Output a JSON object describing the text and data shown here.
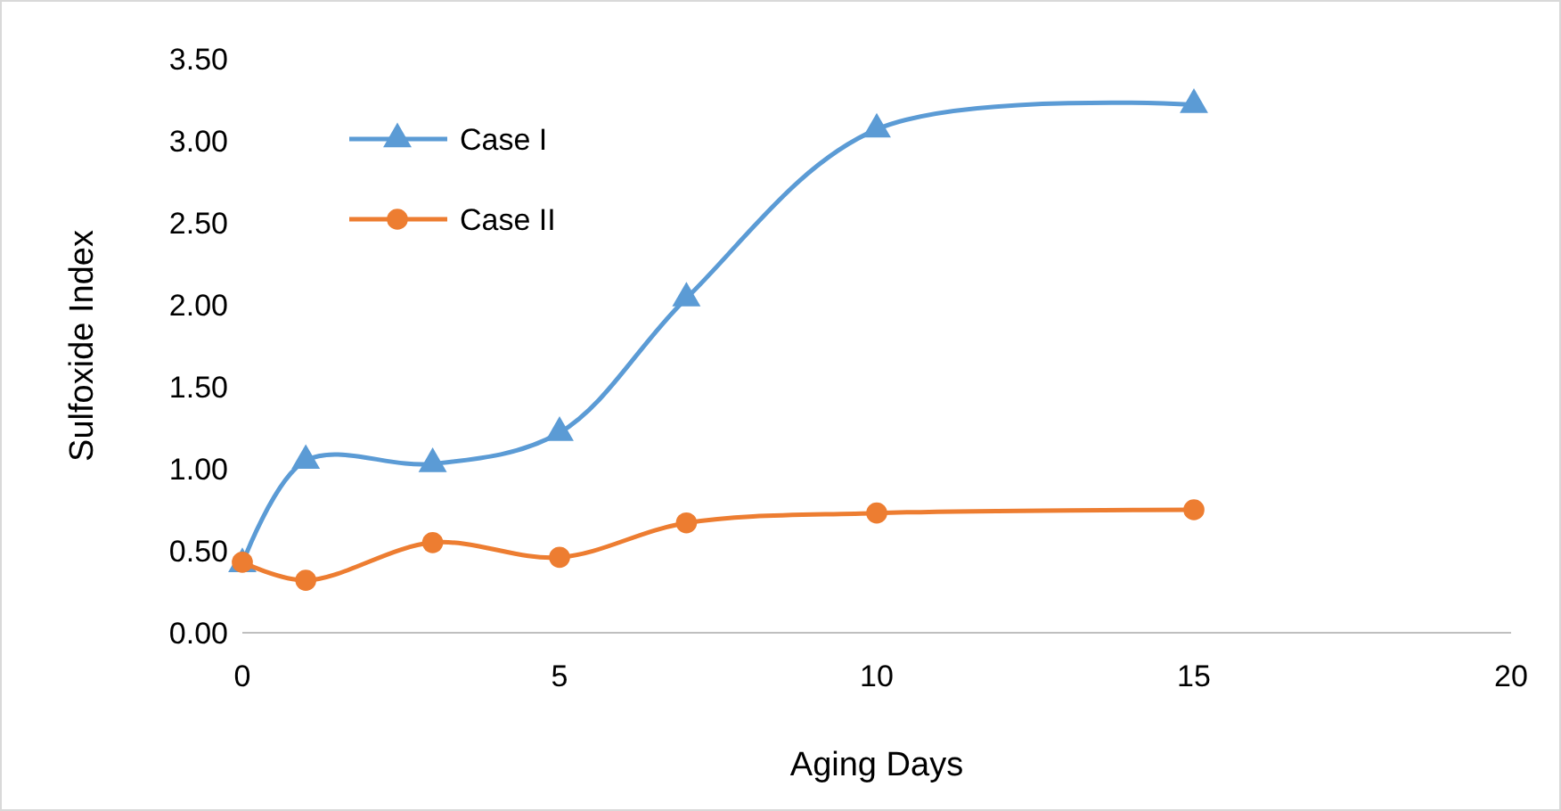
{
  "chart_data": {
    "type": "line",
    "xlabel": "Aging Days",
    "ylabel": "Sulfoxide Index",
    "x": [
      0,
      1,
      3,
      5,
      7,
      10,
      15
    ],
    "series": [
      {
        "name": "Case I",
        "color": "#5b9bd5",
        "marker": "triangle",
        "values": [
          0.42,
          1.05,
          1.03,
          1.22,
          2.04,
          3.07,
          3.22
        ]
      },
      {
        "name": "Case II",
        "color": "#ed7d31",
        "marker": "circle",
        "values": [
          0.43,
          0.32,
          0.55,
          0.46,
          0.67,
          0.73,
          0.75
        ]
      }
    ],
    "xlim": [
      0,
      20
    ],
    "xticks": [
      0,
      5,
      10,
      15,
      20
    ],
    "ylim": [
      0,
      3.5
    ],
    "yticks": [
      {
        "value": 0,
        "label": "0.00"
      },
      {
        "value": 0.5,
        "label": "0.50"
      },
      {
        "value": 1,
        "label": "1.00"
      },
      {
        "value": 1.5,
        "label": "1.50"
      },
      {
        "value": 2,
        "label": "2.00"
      },
      {
        "value": 2.5,
        "label": "2.50"
      },
      {
        "value": 3,
        "label": "3.00"
      },
      {
        "value": 3.5,
        "label": "3.50"
      }
    ],
    "grid": false,
    "legend": "top left",
    "line_style": "solid"
  }
}
